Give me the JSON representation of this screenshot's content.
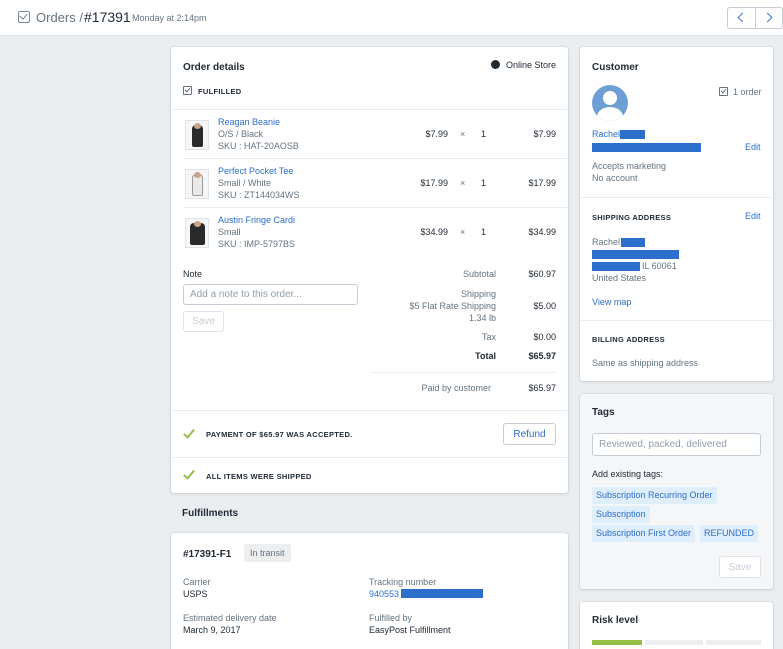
{
  "header": {
    "breadcrumb_orders": "Orders /",
    "order_number": "#17391",
    "date": "Monday at 2:14pm"
  },
  "order_details": {
    "title": "Order details",
    "channel": "Online Store",
    "status": "FULFILLED",
    "items": [
      {
        "name": "Reagan Beanie",
        "variant": "O/S / Black",
        "sku": "SKU : HAT-20AOSB",
        "price": "$7.99",
        "times": "×",
        "qty": "1",
        "total": "$7.99"
      },
      {
        "name": "Perfect Pocket Tee",
        "variant": "Small / White",
        "sku": "SKU : ZT144034WS",
        "price": "$17.99",
        "times": "×",
        "qty": "1",
        "total": "$17.99"
      },
      {
        "name": "Austin Fringe Cardi",
        "variant": "Small",
        "sku": "SKU : IMP-5797BS",
        "price": "$34.99",
        "times": "×",
        "qty": "1",
        "total": "$34.99"
      }
    ],
    "note_label": "Note",
    "note_placeholder": "Add a note to this order...",
    "save_label": "Save",
    "summary": {
      "subtotal_label": "Subtotal",
      "subtotal": "$60.97",
      "shipping_label": "Shipping",
      "shipping_method": "$5 Flat Rate Shipping",
      "shipping_weight": "1.34 lb",
      "shipping": "$5.00",
      "tax_label": "Tax",
      "tax": "$0.00",
      "total_label": "Total",
      "total": "$65.97",
      "paid_label": "Paid by customer",
      "paid": "$65.97"
    },
    "payment_text": "PAYMENT OF $65.97 WAS ACCEPTED.",
    "refund_label": "Refund",
    "shipped_text": "ALL ITEMS WERE SHIPPED"
  },
  "fulfillments": {
    "title": "Fulfillments",
    "id": "#17391-F1",
    "status": "In transit",
    "carrier_label": "Carrier",
    "carrier": "USPS",
    "tracking_label": "Tracking number",
    "tracking": "940553",
    "est_label": "Estimated delivery date",
    "est_date": "March 9, 2017",
    "fulfilled_label": "Fulfilled by",
    "fulfilled_by": "EasyPost Fulfillment"
  },
  "customer": {
    "title": "Customer",
    "order_count": "1 order",
    "name": "Rachel",
    "edit_label": "Edit",
    "marketing": "Accepts marketing",
    "account": "No account",
    "shipping_title": "SHIPPING ADDRESS",
    "ship_name": "Rachel",
    "ship_city": "IL 60061",
    "ship_country": "United States",
    "view_map": "View map",
    "billing_title": "BILLING ADDRESS",
    "billing_text": "Same as shipping address"
  },
  "tags": {
    "title": "Tags",
    "placeholder": "Reviewed, packed, delivered",
    "existing_label": "Add existing tags:",
    "items": [
      "Subscription Recurring Order",
      "Subscription",
      "Subscription First Order",
      "REFUNDED"
    ],
    "save_label": "Save"
  },
  "risk": {
    "title": "Risk level"
  },
  "colors": {
    "accent": "#2c6ecb",
    "success": "#96bf48",
    "redaction": "#2c6ecb"
  }
}
